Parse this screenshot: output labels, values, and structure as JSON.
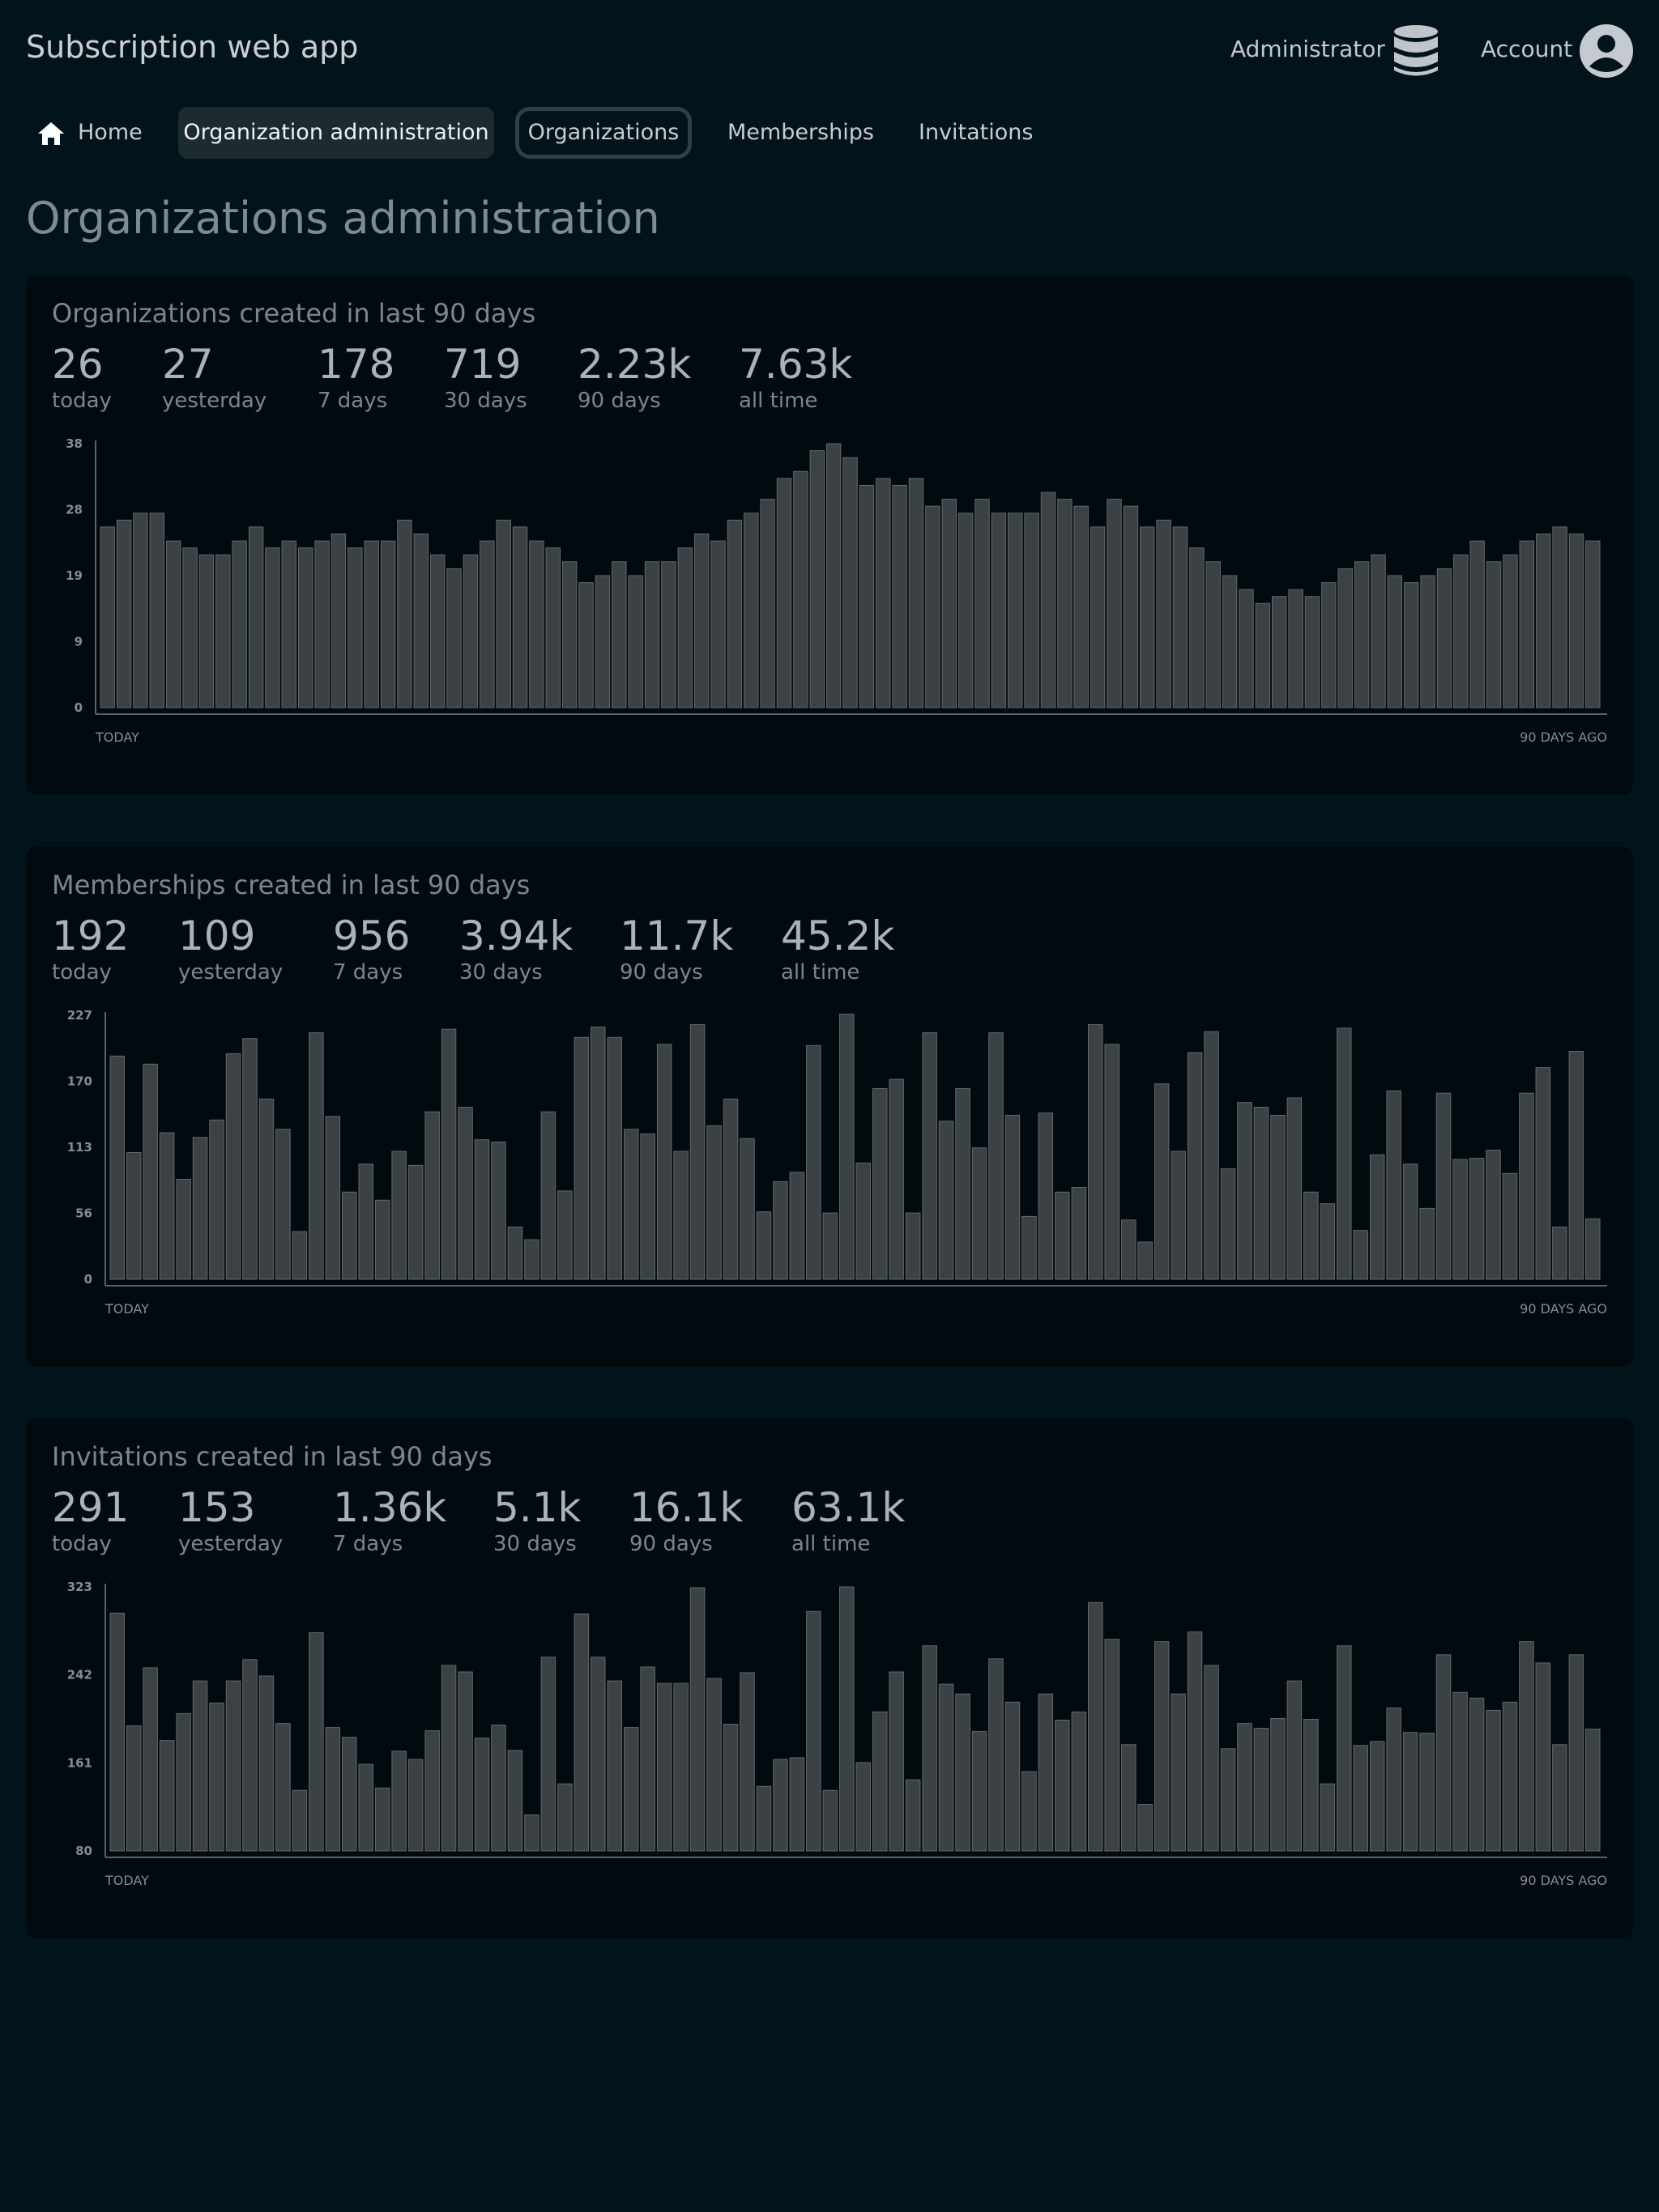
{
  "header": {
    "app_title": "Subscription web app",
    "admin_label": "Administrator",
    "account_label": "Account",
    "icons": {
      "admin": "database-icon",
      "account": "account-circle-icon"
    }
  },
  "nav": {
    "home": "Home",
    "org_admin": "Organization administration",
    "organizations": "Organizations",
    "memberships": "Memberships",
    "invitations": "Invitations",
    "icons": {
      "home": "home-icon"
    }
  },
  "page_title": "Organizations administration",
  "colors": {
    "background": "#02141b",
    "card": "#010b0f",
    "bar_fill": "#3b4145",
    "bar_stroke": "#61686c",
    "active_tab": "#1b2b2f"
  },
  "panels": [
    {
      "title": "Organizations created in last 90 days",
      "stats": [
        {
          "value": "26",
          "label": "today"
        },
        {
          "value": "27",
          "label": "yesterday"
        },
        {
          "value": "178",
          "label": "7 days"
        },
        {
          "value": "719",
          "label": "30 days"
        },
        {
          "value": "2.23k",
          "label": "90 days"
        },
        {
          "value": "7.63k",
          "label": "all time"
        }
      ],
      "x_start_label": "TODAY",
      "x_end_label": "90 DAYS AGO"
    },
    {
      "title": "Memberships created in last 90 days",
      "stats": [
        {
          "value": "192",
          "label": "today"
        },
        {
          "value": "109",
          "label": "yesterday"
        },
        {
          "value": "956",
          "label": "7 days"
        },
        {
          "value": "3.94k",
          "label": "30 days"
        },
        {
          "value": "11.7k",
          "label": "90 days"
        },
        {
          "value": "45.2k",
          "label": "all time"
        }
      ],
      "x_start_label": "TODAY",
      "x_end_label": "90 DAYS AGO"
    },
    {
      "title": "Invitations created in last 90 days",
      "stats": [
        {
          "value": "291",
          "label": "today"
        },
        {
          "value": "153",
          "label": "yesterday"
        },
        {
          "value": "1.36k",
          "label": "7 days"
        },
        {
          "value": "5.1k",
          "label": "30 days"
        },
        {
          "value": "16.1k",
          "label": "90 days"
        },
        {
          "value": "63.1k",
          "label": "all time"
        }
      ],
      "x_start_label": "TODAY",
      "x_end_label": "90 DAYS AGO"
    }
  ],
  "chart_data": [
    {
      "type": "bar",
      "ylim": [
        0,
        38
      ],
      "yticks": [
        "0",
        "9",
        "19",
        "28",
        "38"
      ],
      "x_labels": [
        "TODAY",
        "90 DAYS AGO"
      ],
      "values": [
        26,
        27,
        28,
        28,
        24,
        23,
        22,
        22,
        24,
        26,
        23,
        24,
        23,
        24,
        25,
        23,
        24,
        24,
        27,
        25,
        22,
        20,
        22,
        24,
        27,
        26,
        24,
        23,
        21,
        18,
        19,
        21,
        19,
        21,
        21,
        23,
        25,
        24,
        27,
        28,
        30,
        33,
        34,
        37,
        38,
        36,
        32,
        33,
        32,
        33,
        29,
        30,
        28,
        30,
        28,
        28,
        28,
        31,
        30,
        29,
        26,
        30,
        29,
        26,
        27,
        26,
        23,
        21,
        19,
        17,
        15,
        16,
        17,
        16,
        18,
        20,
        21,
        22,
        19,
        18,
        19,
        20,
        22,
        24,
        21,
        22,
        24,
        25,
        26,
        25,
        24
      ]
    },
    {
      "type": "bar",
      "ylim": [
        0,
        227
      ],
      "yticks": [
        "0",
        "56",
        "113",
        "170",
        "227"
      ],
      "x_labels": [
        "TODAY",
        "90 DAYS AGO"
      ],
      "values": [
        192,
        109,
        185,
        126,
        86,
        122,
        137,
        194,
        207,
        155,
        129,
        41,
        212,
        140,
        75,
        99,
        68,
        110,
        98,
        144,
        215,
        148,
        120,
        118,
        45,
        34,
        144,
        76,
        208,
        217,
        208,
        129,
        125,
        202,
        110,
        219,
        132,
        155,
        121,
        58,
        84,
        92,
        201,
        57,
        228,
        100,
        164,
        172,
        57,
        212,
        136,
        164,
        113,
        212,
        141,
        54,
        143,
        75,
        79,
        219,
        202,
        51,
        32,
        168,
        110,
        195,
        213,
        95,
        152,
        148,
        141,
        156,
        75,
        65,
        216,
        42,
        107,
        162,
        99,
        61,
        160,
        103,
        104,
        111,
        91,
        160,
        182,
        45,
        196,
        52
      ]
    },
    {
      "type": "bar",
      "ylim": [
        0,
        323
      ],
      "yticks": [
        "80",
        "161",
        "242",
        "323"
      ],
      "x_labels": [
        "TODAY",
        "90 DAYS AGO"
      ],
      "values": [
        291,
        153,
        224,
        135,
        168,
        208,
        181,
        208,
        234,
        214,
        156,
        74,
        267,
        151,
        139,
        106,
        77,
        122,
        112,
        147,
        227,
        219,
        138,
        154,
        123,
        44,
        237,
        82,
        290,
        237,
        208,
        151,
        225,
        205,
        205,
        322,
        211,
        155,
        218,
        79,
        112,
        114,
        293,
        74,
        323,
        108,
        170,
        219,
        87,
        251,
        204,
        192,
        146,
        235,
        182,
        97,
        192,
        160,
        170,
        304,
        259,
        130,
        57,
        256,
        192,
        268,
        227,
        125,
        156,
        150,
        162,
        208,
        161,
        82,
        251,
        129,
        134,
        175,
        145,
        144,
        240,
        194,
        187,
        172,
        182,
        256,
        230,
        130,
        240,
        149
      ]
    }
  ]
}
